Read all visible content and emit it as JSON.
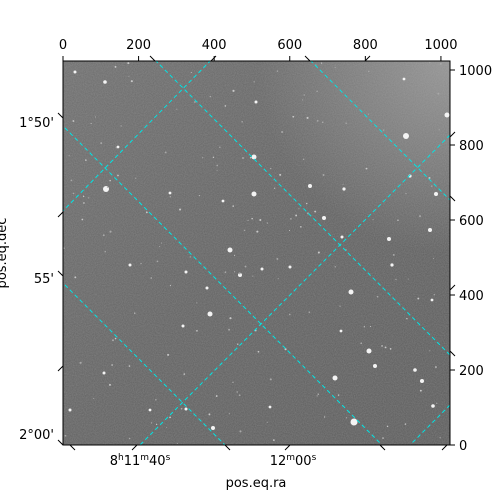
{
  "image_kind": "astronomical sky image with world-coordinate grid overlay",
  "colors": {
    "grid": "#00e5e5",
    "frame": "#000000",
    "background": "#ffffff"
  },
  "pixel_axes": {
    "bottom_ticks_top": [
      "0",
      "200",
      "400",
      "600",
      "800",
      "1000"
    ],
    "right_ticks": [
      "0",
      "200",
      "400",
      "600",
      "800",
      "1000"
    ]
  },
  "world_axes": {
    "bottom_ra_ticks": [
      {
        "h": "8",
        "hsup": "h",
        "m": "11",
        "msup": "m",
        "s": "40",
        "ssup": "s"
      },
      {
        "h": "",
        "hsup": "",
        "m": "12",
        "msup": "m",
        "s": "00",
        "ssup": "s"
      }
    ],
    "left_dec_ticks": [
      "1°50'",
      "55'",
      "2°00'"
    ],
    "xlabel": "pos.eq.ra",
    "ylabel": "pos.eq.dec"
  }
}
